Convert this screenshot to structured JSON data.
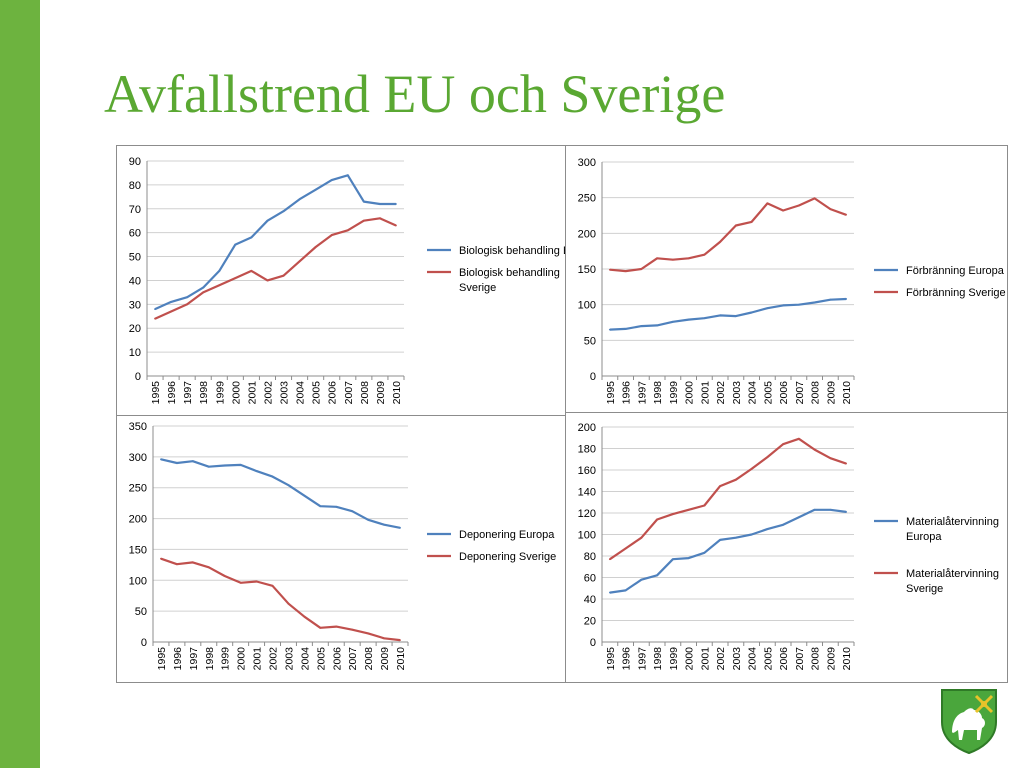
{
  "title": "Avfallstrend EU och Sverige",
  "colors": {
    "europa": "#4f81bd",
    "sverige": "#c0504d",
    "accent": "#6db33f",
    "title": "#5aa832"
  },
  "chart_data": [
    {
      "type": "line",
      "categories": [
        "1995",
        "1996",
        "1997",
        "1998",
        "1999",
        "2000",
        "2001",
        "2002",
        "2003",
        "2004",
        "2005",
        "2006",
        "2007",
        "2008",
        "2009",
        "2010"
      ],
      "ylim": [
        0,
        90
      ],
      "yticks": [
        0,
        10,
        20,
        30,
        40,
        50,
        60,
        70,
        80,
        90
      ],
      "grid": true,
      "legend_position": "right",
      "series": [
        {
          "name": "Biologisk behandling Europa",
          "color": "#4f81bd",
          "values": [
            28,
            31,
            33,
            37,
            44,
            55,
            58,
            65,
            69,
            74,
            78,
            82,
            84,
            73,
            72,
            72
          ]
        },
        {
          "name": "Biologisk behandling Sverige",
          "color": "#c0504d",
          "values": [
            24,
            27,
            30,
            35,
            38,
            41,
            44,
            40,
            42,
            48,
            54,
            59,
            61,
            65,
            66,
            63
          ]
        }
      ]
    },
    {
      "type": "line",
      "categories": [
        "1995",
        "1996",
        "1997",
        "1998",
        "1999",
        "2000",
        "2001",
        "2002",
        "2003",
        "2004",
        "2005",
        "2006",
        "2007",
        "2008",
        "2009",
        "2010"
      ],
      "ylim": [
        0,
        300
      ],
      "yticks": [
        0,
        50,
        100,
        150,
        200,
        250,
        300
      ],
      "grid": true,
      "legend_position": "right",
      "series": [
        {
          "name": "Förbränning Europa",
          "color": "#4f81bd",
          "values": [
            65,
            66,
            70,
            71,
            76,
            79,
            81,
            85,
            84,
            89,
            95,
            99,
            100,
            103,
            107,
            108
          ]
        },
        {
          "name": "Förbränning Sverige",
          "color": "#c0504d",
          "values": [
            149,
            147,
            150,
            165,
            163,
            165,
            170,
            188,
            211,
            216,
            242,
            232,
            239,
            249,
            234,
            226
          ]
        }
      ]
    },
    {
      "type": "line",
      "categories": [
        "1995",
        "1996",
        "1997",
        "1998",
        "1999",
        "2000",
        "2001",
        "2002",
        "2003",
        "2004",
        "2005",
        "2006",
        "2007",
        "2008",
        "2009",
        "2010"
      ],
      "ylim": [
        0,
        350
      ],
      "yticks": [
        0,
        50,
        100,
        150,
        200,
        250,
        300,
        350
      ],
      "grid": true,
      "legend_position": "right",
      "series": [
        {
          "name": "Deponering  Europa",
          "color": "#4f81bd",
          "values": [
            296,
            290,
            293,
            284,
            286,
            287,
            277,
            268,
            254,
            237,
            220,
            219,
            212,
            198,
            190,
            185
          ]
        },
        {
          "name": "Deponering  Sverige",
          "color": "#c0504d",
          "values": [
            135,
            126,
            129,
            121,
            107,
            96,
            98,
            91,
            62,
            41,
            23,
            25,
            20,
            14,
            6,
            3
          ]
        }
      ]
    },
    {
      "type": "line",
      "categories": [
        "1995",
        "1996",
        "1997",
        "1998",
        "1999",
        "2000",
        "2001",
        "2002",
        "2003",
        "2004",
        "2005",
        "2006",
        "2007",
        "2008",
        "2009",
        "2010"
      ],
      "ylim": [
        0,
        200
      ],
      "yticks": [
        0,
        20,
        40,
        60,
        80,
        100,
        120,
        140,
        160,
        180,
        200
      ],
      "grid": true,
      "legend_position": "right",
      "series": [
        {
          "name": "Materialåtervinning Europa",
          "color": "#4f81bd",
          "values": [
            46,
            48,
            58,
            62,
            77,
            78,
            83,
            95,
            97,
            100,
            105,
            109,
            116,
            123,
            123,
            121
          ]
        },
        {
          "name": "Materialåtervinning Sverige",
          "color": "#c0504d",
          "values": [
            77,
            87,
            97,
            114,
            119,
            123,
            127,
            145,
            151,
            161,
            172,
            184,
            189,
            179,
            171,
            166
          ]
        }
      ]
    }
  ]
}
